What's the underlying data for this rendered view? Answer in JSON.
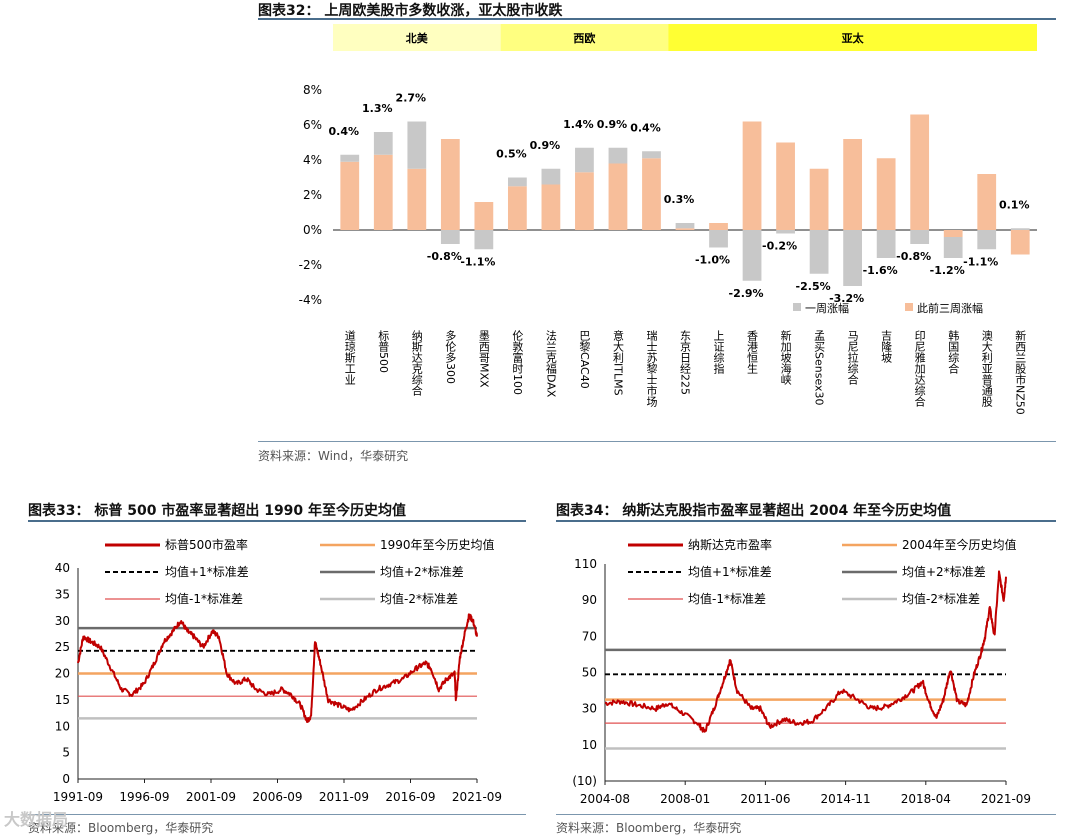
{
  "figures": {
    "fig32": {
      "title": "图表32：  上周欧美股市多数收涨，亚太股市收跌",
      "source": "资料来源：Wind，华泰研究"
    },
    "fig33": {
      "title": "图表33：  标普 500 市盈率显著超出 1990 年至今历史均值",
      "source": "资料来源：Bloomberg，华泰研究"
    },
    "fig34": {
      "title": "图表34：  纳斯达克股指市盈率显著超出 2004 年至今历史均值",
      "source": "资料来源：Bloomberg，华泰研究"
    }
  },
  "watermark": "大数据局",
  "chart_data": [
    {
      "type": "bar",
      "id": "fig32",
      "regions": [
        {
          "label": "北美",
          "color": "#ffffc0",
          "from": 0,
          "to": 4
        },
        {
          "label": "西欧",
          "color": "#ffff80",
          "from": 5,
          "to": 9
        },
        {
          "label": "亚太",
          "color": "#ffff33",
          "from": 10,
          "to": 20
        }
      ],
      "categories": [
        "道琼斯工业",
        "标普500",
        "纳斯达克综合",
        "多伦多300",
        "墨西哥MXX",
        "伦敦富时100",
        "法兰克福DAX",
        "巴黎CAC40",
        "意大利ITLMS",
        "瑞士苏黎士市场",
        "东京日经225",
        "上证综指",
        "香港恒生",
        "新加坡海峡",
        "孟买Sensex30",
        "马尼拉综合",
        "吉隆坡",
        "印尼雅加达综合",
        "韩国综合",
        "澳大利亚普通股",
        "新西兰股市NZ50"
      ],
      "series": [
        {
          "name": "一周涨幅",
          "color": "#c8c8c8",
          "values": [
            0.4,
            1.3,
            2.7,
            -0.8,
            -1.1,
            0.5,
            0.9,
            1.4,
            0.9,
            0.4,
            0.3,
            -1.0,
            -2.9,
            -0.2,
            -2.5,
            -3.2,
            -1.6,
            -0.8,
            -1.2,
            -1.1,
            0.1
          ]
        },
        {
          "name": "此前三周涨幅",
          "color": "#f7be9a",
          "values": [
            3.9,
            4.3,
            3.5,
            5.2,
            1.6,
            2.5,
            2.6,
            3.3,
            3.8,
            4.1,
            0.1,
            0.4,
            6.2,
            5.0,
            3.5,
            5.2,
            4.1,
            6.6,
            -0.4,
            3.2,
            -1.4
          ]
        }
      ],
      "labels": [
        "0.4%",
        "1.3%",
        "2.7%",
        "-0.8%",
        "-1.1%",
        "0.5%",
        "0.9%",
        "1.4%",
        "0.9%",
        "0.4%",
        "0.3%",
        "-1.0%",
        "-2.9%",
        "-0.2%",
        "-2.5%",
        "-3.2%",
        "-1.6%",
        "-0.8%",
        "-1.2%",
        "-1.1%",
        "0.1%"
      ],
      "yticks": [
        "-4%",
        "-2%",
        "0%",
        "2%",
        "4%",
        "6%",
        "8%"
      ],
      "ylim": [
        -4,
        8
      ]
    },
    {
      "type": "line",
      "id": "fig33",
      "legend": [
        {
          "name": "标普500市盈率",
          "color": "#c00000",
          "style": "solid-thick"
        },
        {
          "name": "1990年至今历史均值",
          "color": "#f4a460",
          "style": "solid"
        },
        {
          "name": "均值+1*标准差",
          "color": "#000000",
          "style": "dashed"
        },
        {
          "name": "均值+2*标准差",
          "color": "#6b6b6b",
          "style": "solid"
        },
        {
          "name": "均值-1*标准差",
          "color": "#e05050",
          "style": "solid-thin"
        },
        {
          "name": "均值-2*标准差",
          "color": "#c0c0c0",
          "style": "solid"
        }
      ],
      "hlines": {
        "mean": 20.0,
        "plus1": 24.3,
        "plus2": 28.6,
        "minus1": 15.7,
        "minus2": 11.5
      },
      "xticks": [
        "1991-09",
        "1996-09",
        "2001-09",
        "2006-09",
        "2011-09",
        "2016-09",
        "2021-09"
      ],
      "yticks": [
        "0",
        "5",
        "10",
        "15",
        "20",
        "25",
        "30",
        "35",
        "40"
      ],
      "ylim": [
        0,
        40
      ],
      "x_range": [
        1991.5,
        2021.8
      ],
      "series_points": [
        [
          1991.5,
          22
        ],
        [
          1991.9,
          27
        ],
        [
          1992.5,
          26
        ],
        [
          1993.2,
          25
        ],
        [
          1994.0,
          21
        ],
        [
          1994.8,
          17
        ],
        [
          1995.6,
          16
        ],
        [
          1996.5,
          18
        ],
        [
          1997.3,
          22
        ],
        [
          1998.0,
          26
        ],
        [
          1998.7,
          28
        ],
        [
          1999.3,
          30
        ],
        [
          1999.8,
          28
        ],
        [
          2000.3,
          27
        ],
        [
          2001.0,
          25
        ],
        [
          2001.7,
          28
        ],
        [
          2002.2,
          27
        ],
        [
          2002.8,
          20
        ],
        [
          2003.5,
          18
        ],
        [
          2004.3,
          19
        ],
        [
          2005.0,
          17
        ],
        [
          2006.0,
          16
        ],
        [
          2007.0,
          17
        ],
        [
          2007.7,
          16
        ],
        [
          2008.4,
          14
        ],
        [
          2008.9,
          11
        ],
        [
          2009.2,
          12
        ],
        [
          2009.5,
          26
        ],
        [
          2009.9,
          22
        ],
        [
          2010.5,
          15
        ],
        [
          2011.3,
          14
        ],
        [
          2012.2,
          13
        ],
        [
          2013.2,
          15
        ],
        [
          2014.2,
          17
        ],
        [
          2015.2,
          18
        ],
        [
          2016.2,
          19
        ],
        [
          2017.2,
          21
        ],
        [
          2017.9,
          22
        ],
        [
          2018.3,
          21
        ],
        [
          2018.9,
          17
        ],
        [
          2019.5,
          19
        ],
        [
          2020.1,
          20
        ],
        [
          2020.2,
          15
        ],
        [
          2020.5,
          23
        ],
        [
          2020.9,
          28
        ],
        [
          2021.2,
          31
        ],
        [
          2021.5,
          30
        ],
        [
          2021.8,
          27
        ]
      ]
    },
    {
      "type": "line",
      "id": "fig34",
      "legend": [
        {
          "name": "纳斯达克市盈率",
          "color": "#c00000",
          "style": "solid-thick"
        },
        {
          "name": "2004年至今历史均值",
          "color": "#f4a460",
          "style": "solid"
        },
        {
          "name": "均值+1*标准差",
          "color": "#000000",
          "style": "dashed"
        },
        {
          "name": "均值+2*标准差",
          "color": "#6b6b6b",
          "style": "solid"
        },
        {
          "name": "均值-1*标准差",
          "color": "#e05050",
          "style": "solid-thin"
        },
        {
          "name": "均值-2*标准差",
          "color": "#c0c0c0",
          "style": "solid"
        }
      ],
      "hlines": {
        "mean": 35.0,
        "plus1": 49.0,
        "plus2": 62.5,
        "minus1": 22.0,
        "minus2": 8.0
      },
      "xticks": [
        "2004-08",
        "2008-01",
        "2011-06",
        "2014-11",
        "2018-04",
        "2021-09"
      ],
      "yticks": [
        "(10)",
        "10",
        "30",
        "50",
        "70",
        "90",
        "110"
      ],
      "ylim": [
        -10,
        110
      ],
      "x_range": [
        2004.6,
        2021.9
      ],
      "series_points": [
        [
          2004.6,
          33
        ],
        [
          2005.3,
          34
        ],
        [
          2006.0,
          32
        ],
        [
          2006.8,
          30
        ],
        [
          2007.3,
          33
        ],
        [
          2007.9,
          28
        ],
        [
          2008.6,
          22
        ],
        [
          2008.9,
          17
        ],
        [
          2009.3,
          30
        ],
        [
          2009.7,
          45
        ],
        [
          2010.0,
          57
        ],
        [
          2010.3,
          40
        ],
        [
          2010.9,
          30
        ],
        [
          2011.3,
          30
        ],
        [
          2011.7,
          20
        ],
        [
          2012.3,
          24
        ],
        [
          2012.9,
          22
        ],
        [
          2013.5,
          23
        ],
        [
          2014.2,
          31
        ],
        [
          2014.8,
          40
        ],
        [
          2015.5,
          35
        ],
        [
          2016.1,
          30
        ],
        [
          2016.7,
          31
        ],
        [
          2017.3,
          35
        ],
        [
          2017.9,
          40
        ],
        [
          2018.3,
          45
        ],
        [
          2018.6,
          33
        ],
        [
          2018.9,
          25
        ],
        [
          2019.2,
          35
        ],
        [
          2019.5,
          52
        ],
        [
          2019.8,
          34
        ],
        [
          2020.2,
          32
        ],
        [
          2020.5,
          48
        ],
        [
          2020.8,
          60
        ],
        [
          2021.0,
          70
        ],
        [
          2021.2,
          86
        ],
        [
          2021.4,
          70
        ],
        [
          2021.6,
          105
        ],
        [
          2021.8,
          90
        ],
        [
          2021.9,
          103
        ]
      ]
    }
  ]
}
